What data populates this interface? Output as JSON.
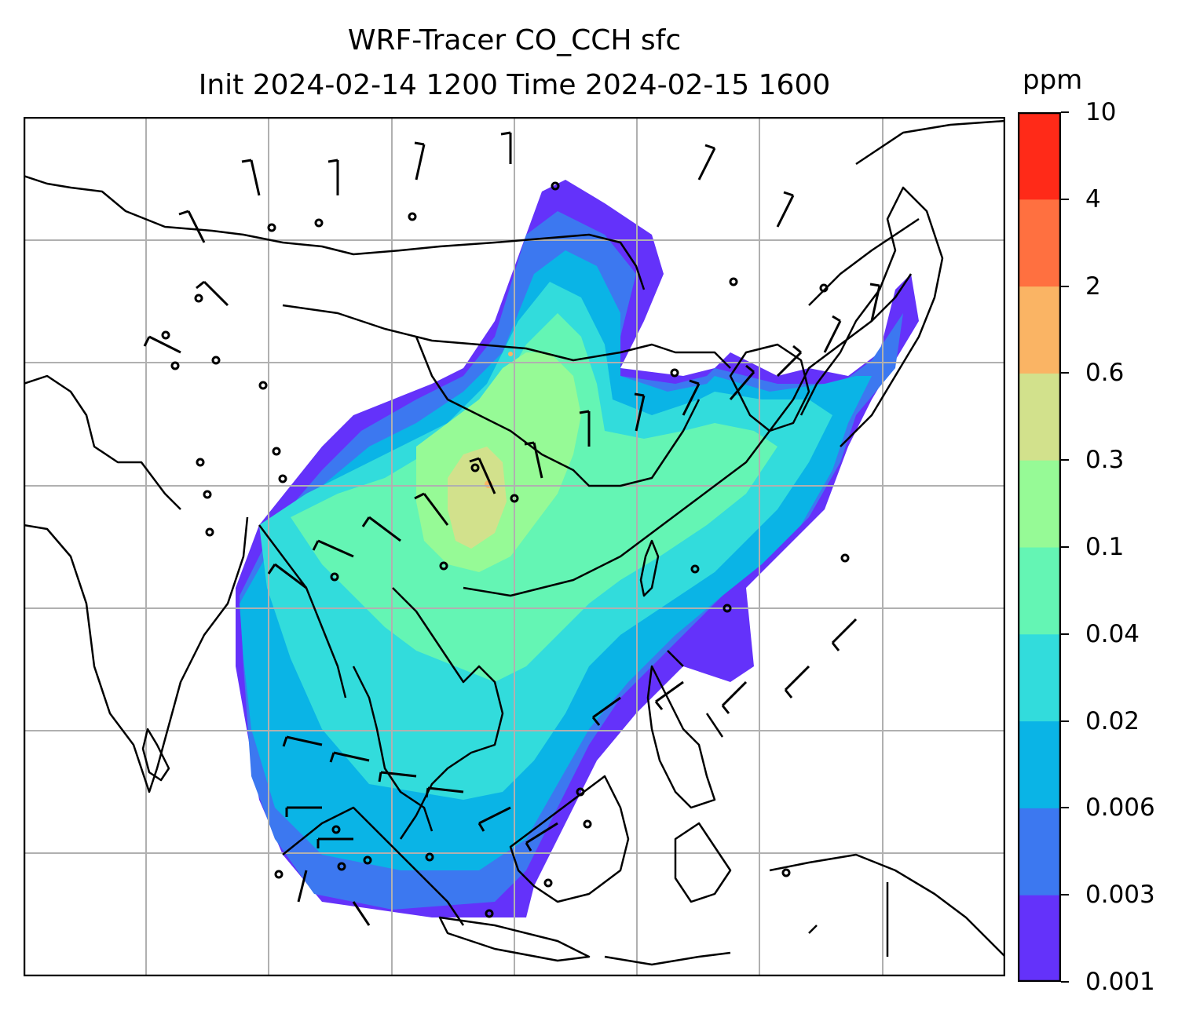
{
  "title": {
    "line1": "WRF-Tracer CO_CCH sfc",
    "line2": "Init 2024-02-14 1200 Time 2024-02-15 1600"
  },
  "colorbar": {
    "units": "ppm",
    "levels": [
      "0.001",
      "0.003",
      "0.006",
      "0.02",
      "0.04",
      "0.1",
      "0.3",
      "0.6",
      "2",
      "4",
      "10"
    ],
    "colors": [
      "#6432fa",
      "#3c78f0",
      "#0ab4e6",
      "#32dcdc",
      "#64f5b4",
      "#96fa96",
      "#d2e18c",
      "#fab464",
      "#ff7040",
      "#ff2a18"
    ]
  },
  "map": {
    "gridlines": true,
    "background": "#ffffff",
    "coastline_color": "#000000",
    "gridline_color": "#b0b0b0"
  }
}
